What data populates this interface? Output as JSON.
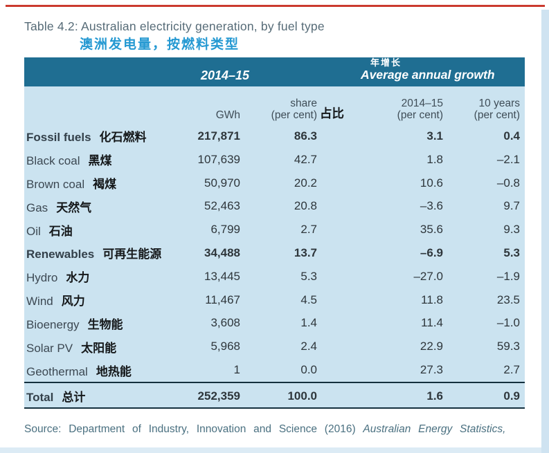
{
  "page": {
    "title": "Table 4.2: Australian electricity generation, by fuel type",
    "subtitle_zh": "澳洲发电量，按燃料类型"
  },
  "colors": {
    "top_rule": "#cb3a2e",
    "header_band": "#1f6e92",
    "table_body": "#cbe3f0",
    "divider": "#14303e",
    "subtitle_blue": "#2599d2"
  },
  "table": {
    "header": {
      "period_group": "2014–15",
      "growth_group_zh": "年增长",
      "growth_group_en": "Average annual growth"
    },
    "subheader": {
      "gwh": "GWh",
      "share_line1": "share",
      "share_line2": "(per cent)",
      "share_zh": "占比",
      "growth1_line1": "2014–15",
      "growth1_line2": "(per cent)",
      "growth2_line1": "10 years",
      "growth2_line2": "(per cent)"
    },
    "rows": [
      {
        "en": "Fossil fuels",
        "zh": "化石燃料",
        "gwh": "217,871",
        "share": "86.3",
        "g1": "3.1",
        "g10": "0.4"
      },
      {
        "en": "Black coal",
        "zh": "黑煤",
        "gwh": "107,639",
        "share": "42.7",
        "g1": "1.8",
        "g10": "–2.1"
      },
      {
        "en": "Brown coal",
        "zh": "褐煤",
        "gwh": "50,970",
        "share": "20.2",
        "g1": "10.6",
        "g10": "–0.8"
      },
      {
        "en": "Gas",
        "zh": "天然气",
        "gwh": "52,463",
        "share": "20.8",
        "g1": "–3.6",
        "g10": "9.7"
      },
      {
        "en": "Oil",
        "zh": "石油",
        "gwh": "6,799",
        "share": "2.7",
        "g1": "35.6",
        "g10": "9.3"
      },
      {
        "en": "Renewables",
        "zh": "可再生能源",
        "gwh": "34,488",
        "share": "13.7",
        "g1": "–6.9",
        "g10": "5.3"
      },
      {
        "en": "Hydro",
        "zh": "水力",
        "gwh": "13,445",
        "share": "5.3",
        "g1": "–27.0",
        "g10": "–1.9"
      },
      {
        "en": "Wind",
        "zh": "风力",
        "gwh": "11,467",
        "share": "4.5",
        "g1": "11.8",
        "g10": "23.5"
      },
      {
        "en": "Bioenergy",
        "zh": "生物能",
        "gwh": "3,608",
        "share": "1.4",
        "g1": "11.4",
        "g10": "–1.0"
      },
      {
        "en": "Solar PV",
        "zh": "太阳能",
        "gwh": "5,968",
        "share": "2.4",
        "g1": "22.9",
        "g10": "59.3"
      },
      {
        "en": "Geothermal",
        "zh": "地热能",
        "gwh": "1",
        "share": "0.0",
        "g1": "27.3",
        "g10": "2.7"
      }
    ],
    "total": {
      "en": "Total",
      "zh": "总计",
      "gwh": "252,359",
      "share": "100.0",
      "g1": "1.6",
      "g10": "0.9"
    }
  },
  "source": {
    "prefix": "Source: Department of Industry, Innovation and Science (2016) ",
    "publication": "Australian Energy Statistics,"
  }
}
